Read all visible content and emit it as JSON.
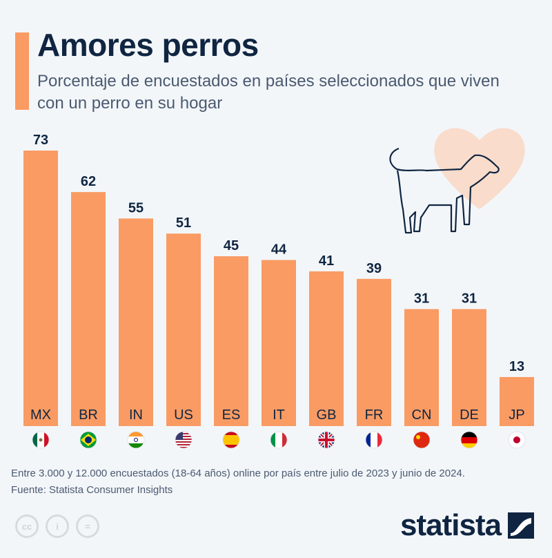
{
  "title": "Amores perros",
  "subtitle": "Porcentaje de encuestados en países seleccionados que viven con un perro en su hogar",
  "colors": {
    "bar": "#f99b63",
    "title": "#0f2541",
    "text": "#4a5a70",
    "heart": "#f9dccb"
  },
  "chart_data": {
    "type": "bar",
    "title": "Amores perros",
    "categories": [
      "MX",
      "BR",
      "IN",
      "US",
      "ES",
      "IT",
      "GB",
      "FR",
      "CN",
      "DE",
      "JP"
    ],
    "values": [
      73,
      62,
      55,
      51,
      45,
      44,
      41,
      39,
      31,
      31,
      13
    ],
    "ylim": [
      0,
      73
    ],
    "grid": false,
    "unit": "%"
  },
  "flags": [
    "mexico-flag",
    "brazil-flag",
    "india-flag",
    "usa-flag",
    "spain-flag",
    "italy-flag",
    "uk-flag",
    "france-flag",
    "china-flag",
    "germany-flag",
    "japan-flag"
  ],
  "footer": {
    "note": "Entre 3.000 y 12.000 encuestados (18-64 años) online por país entre julio de 2023 y junio de 2024.",
    "source": "Fuente: Statista Consumer Insights",
    "cc": [
      "cc",
      "i",
      "="
    ],
    "logo": "statista"
  }
}
